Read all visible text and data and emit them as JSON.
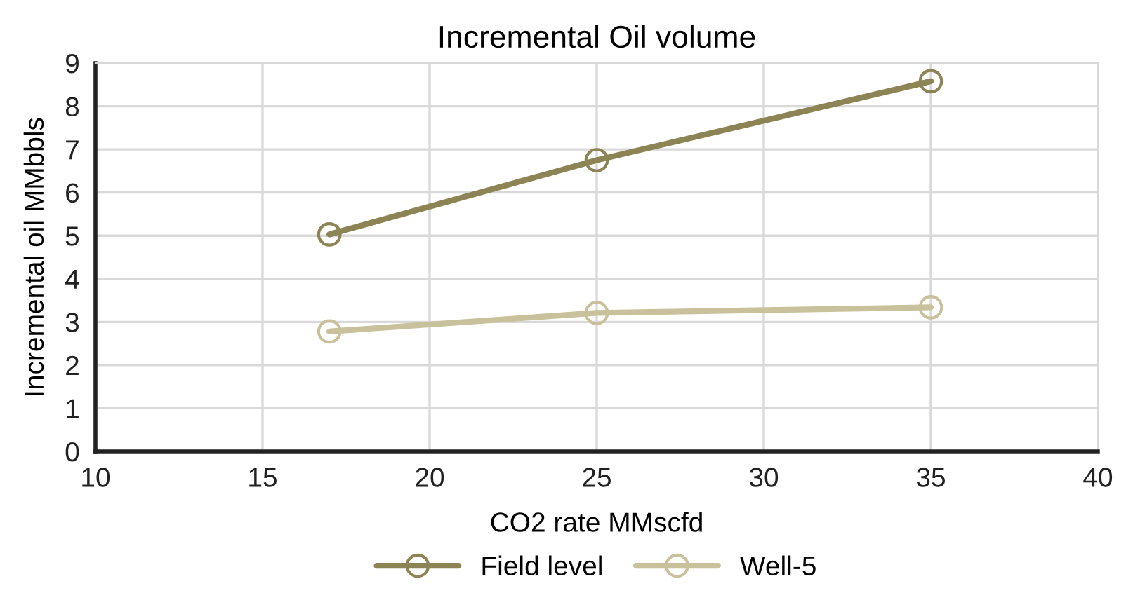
{
  "chart_data": {
    "type": "line",
    "title": "Incremental Oil volume",
    "xlabel": "CO2 rate MMscfd",
    "ylabel": "Incremental oil MMbbls",
    "x": [
      17,
      25,
      35
    ],
    "series": [
      {
        "name": "Field level",
        "color": "#8c8455",
        "values": [
          5.03,
          6.75,
          8.58
        ]
      },
      {
        "name": "Well-5",
        "color": "#c9c19b",
        "values": [
          2.78,
          3.21,
          3.34
        ]
      }
    ],
    "xlim": [
      10,
      40
    ],
    "xticks": [
      10,
      15,
      20,
      25,
      30,
      35,
      40
    ],
    "ylim": [
      0,
      9
    ],
    "yticks": [
      0,
      1,
      2,
      3,
      4,
      5,
      6,
      7,
      8,
      9
    ],
    "grid": true,
    "legend": "bottom",
    "marker": "circle",
    "line_style": "solid"
  }
}
